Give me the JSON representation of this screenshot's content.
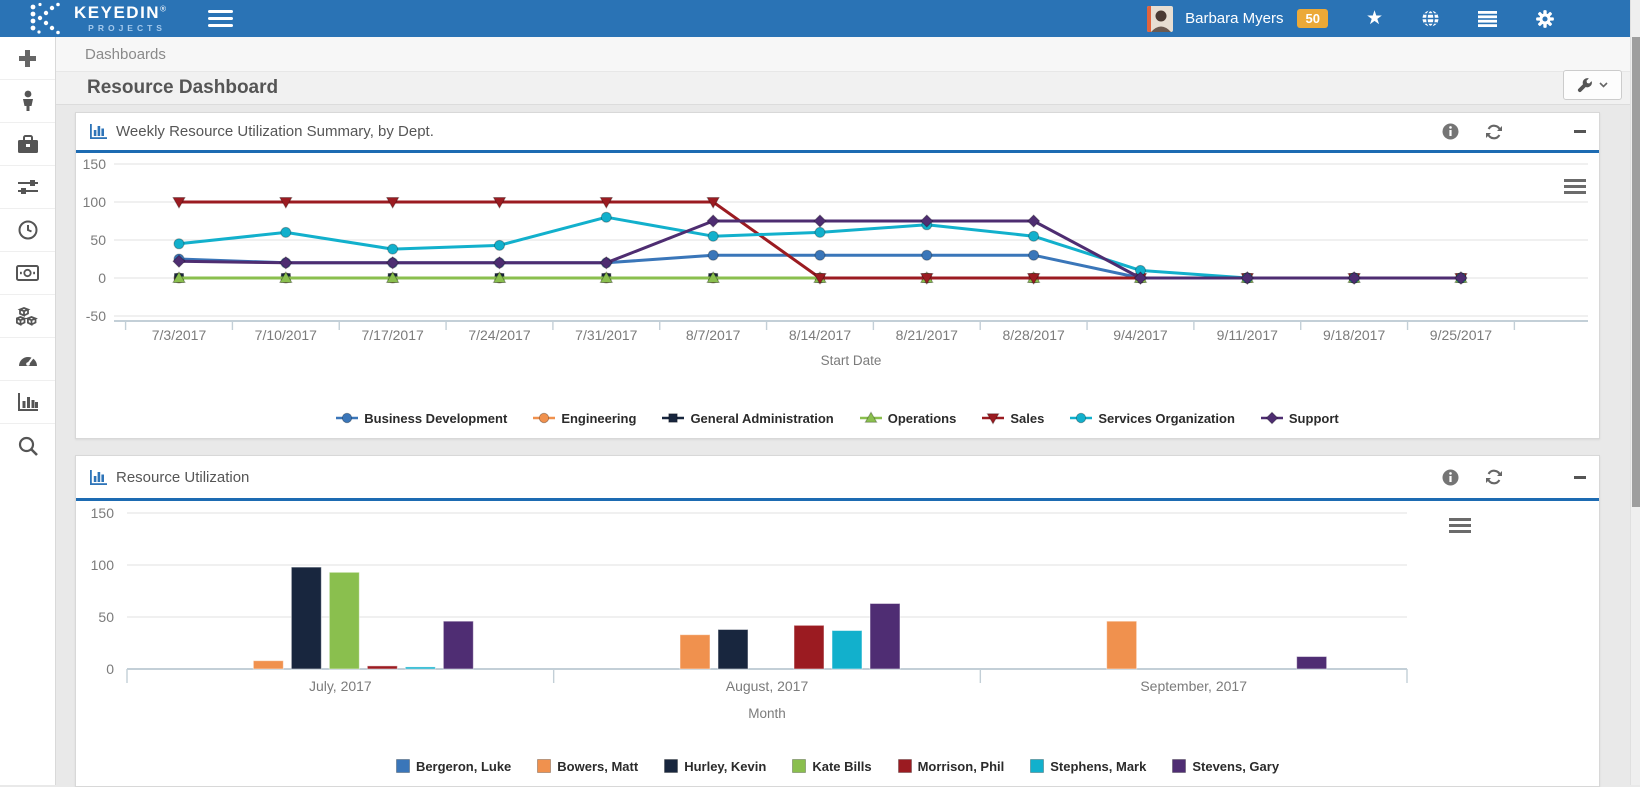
{
  "topbar": {
    "brand": "KEYEDIN",
    "brand_reg": "®",
    "brand_sub": "PROJECTS",
    "user_name": "Barbara Myers",
    "badge": "50",
    "icons": [
      "star-icon",
      "globe-icon",
      "list-icon",
      "gear-icon"
    ],
    "bar_color": "#2a73b5",
    "badge_color": "#eca937"
  },
  "sidebar": {
    "items": [
      "add",
      "resources",
      "projects",
      "settings",
      "time",
      "expenses",
      "products",
      "dashboards",
      "reports",
      "search"
    ]
  },
  "breadcrumb": "Dashboards",
  "page_title": "Resource Dashboard",
  "accent_border_color": "#1d6bb2",
  "panels": [
    {
      "title": "Weekly Resource Utilization Summary, by Dept.",
      "controls": [
        "info",
        "refresh",
        "minimize"
      ]
    },
    {
      "title": "Resource Utilization",
      "controls": [
        "info",
        "refresh",
        "minimize"
      ]
    }
  ],
  "chart_data": [
    {
      "type": "line",
      "title": "Weekly Resource Utilization Summary, by Dept.",
      "x": [
        "7/3/2017",
        "7/10/2017",
        "7/17/2017",
        "7/24/2017",
        "7/31/2017",
        "8/7/2017",
        "8/14/2017",
        "8/21/2017",
        "8/28/2017",
        "9/4/2017",
        "9/11/2017",
        "9/18/2017",
        "9/25/2017"
      ],
      "xlabel": "Start Date",
      "ylim": [
        -50,
        150
      ],
      "yticks": [
        150,
        100,
        50,
        0,
        -50
      ],
      "grid": true,
      "legend_position": "bottom",
      "series": [
        {
          "name": "Business Development",
          "color": "#3a76b9",
          "marker": "circle",
          "values": [
            25,
            20,
            20,
            20,
            20,
            30,
            30,
            30,
            30,
            0,
            0,
            0,
            0
          ]
        },
        {
          "name": "Engineering",
          "color": "#f0914e",
          "marker": "circle",
          "values": [
            0,
            0,
            0,
            0,
            0,
            0,
            0,
            0,
            0,
            0,
            0,
            0,
            0
          ]
        },
        {
          "name": "General Administration",
          "color": "#18263e",
          "marker": "square",
          "values": [
            0,
            0,
            0,
            0,
            0,
            0,
            0,
            0,
            0,
            0,
            0,
            0,
            0
          ]
        },
        {
          "name": "Operations",
          "color": "#8abf4e",
          "marker": "triangle",
          "values": [
            0,
            0,
            0,
            0,
            0,
            0,
            0,
            0,
            0,
            0,
            0,
            0,
            0
          ]
        },
        {
          "name": "Sales",
          "color": "#9b1b21",
          "marker": "triangle-down",
          "values": [
            100,
            100,
            100,
            100,
            100,
            100,
            0,
            0,
            0,
            0,
            0,
            0,
            0
          ]
        },
        {
          "name": "Services Organization",
          "color": "#12b0cc",
          "marker": "circle",
          "values": [
            45,
            60,
            38,
            43,
            80,
            55,
            60,
            70,
            55,
            10,
            0,
            0,
            0
          ]
        },
        {
          "name": "Support",
          "color": "#4e2d71",
          "marker": "diamond",
          "values": [
            22,
            20,
            20,
            20,
            20,
            75,
            75,
            75,
            75,
            0,
            0,
            0,
            0
          ]
        }
      ]
    },
    {
      "type": "bar",
      "title": "Resource Utilization",
      "categories": [
        "July, 2017",
        "August, 2017",
        "September, 2017"
      ],
      "xlabel": "Month",
      "ylim": [
        0,
        150
      ],
      "yticks": [
        150,
        100,
        50,
        0
      ],
      "grid": true,
      "legend_position": "bottom",
      "series": [
        {
          "name": "Bergeron, Luke",
          "color": "#3a76b9",
          "values": [
            0,
            0,
            0
          ]
        },
        {
          "name": "Bowers, Matt",
          "color": "#f0914e",
          "values": [
            8,
            33,
            46
          ]
        },
        {
          "name": "Hurley, Kevin",
          "color": "#18263e",
          "values": [
            98,
            38,
            0
          ]
        },
        {
          "name": "Kate Bills",
          "color": "#8abf4e",
          "values": [
            93,
            0,
            0
          ]
        },
        {
          "name": "Morrison, Phil",
          "color": "#9b1b21",
          "values": [
            3,
            42,
            0
          ]
        },
        {
          "name": "Stephens, Mark",
          "color": "#12b0cc",
          "values": [
            2,
            37,
            0
          ]
        },
        {
          "name": "Stevens, Gary",
          "color": "#4f2d73",
          "values": [
            46,
            63,
            12
          ]
        }
      ]
    }
  ]
}
